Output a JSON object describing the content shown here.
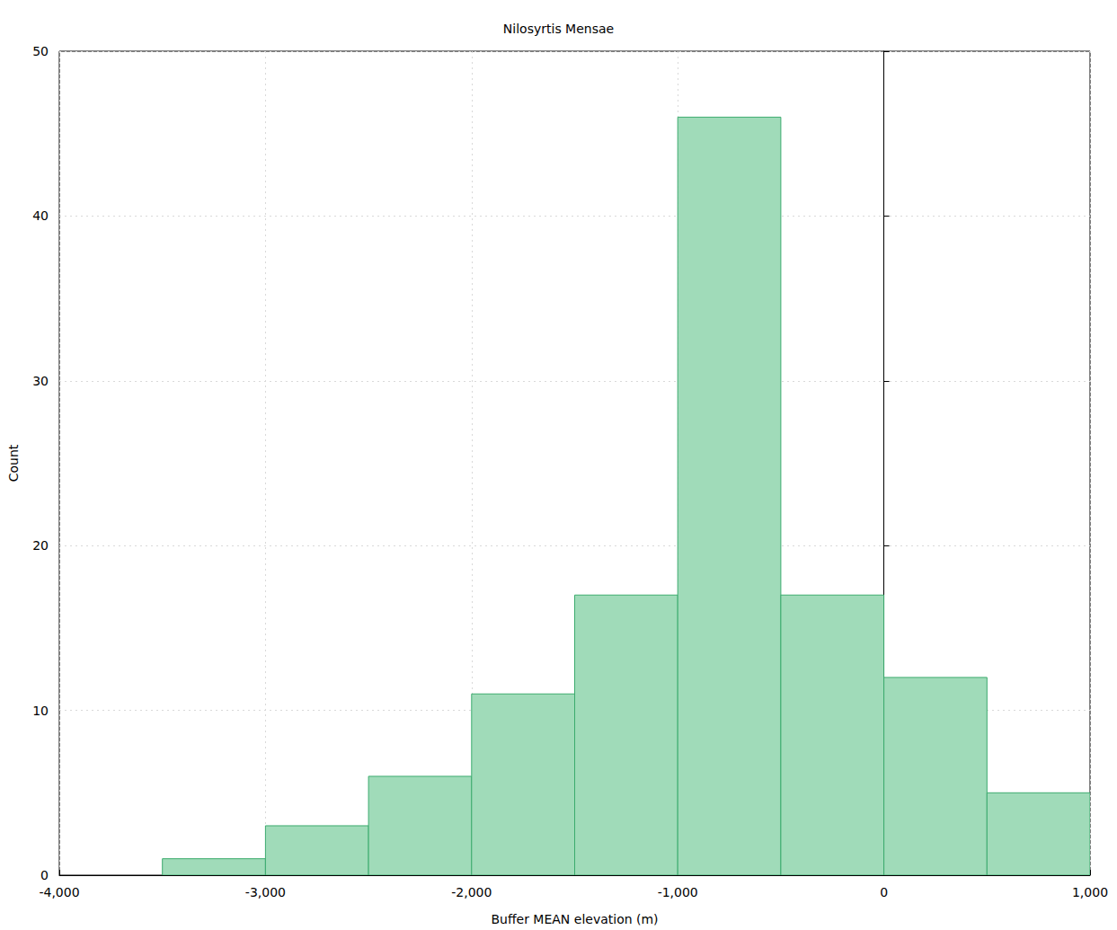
{
  "chart_data": {
    "type": "histogram",
    "title": "Nilosyrtis Mensae",
    "x_label": "Buffer MEAN elevation (m)",
    "y_label": "Count",
    "bins": [
      -3500,
      -3000,
      -2500,
      -2000,
      -1500,
      -1000,
      -500,
      0,
      500,
      1000
    ],
    "values": [
      1,
      3,
      6,
      11,
      17,
      46,
      17,
      12,
      5
    ],
    "color": "#a0dbb9",
    "xlim": [
      -4000,
      1000
    ],
    "xticks": [
      -4000,
      -3000,
      -2000,
      -1000,
      0,
      1000
    ],
    "ylim": [
      0,
      50
    ],
    "yticks": [
      0,
      10,
      20,
      30,
      40,
      50
    ],
    "grid": true
  }
}
